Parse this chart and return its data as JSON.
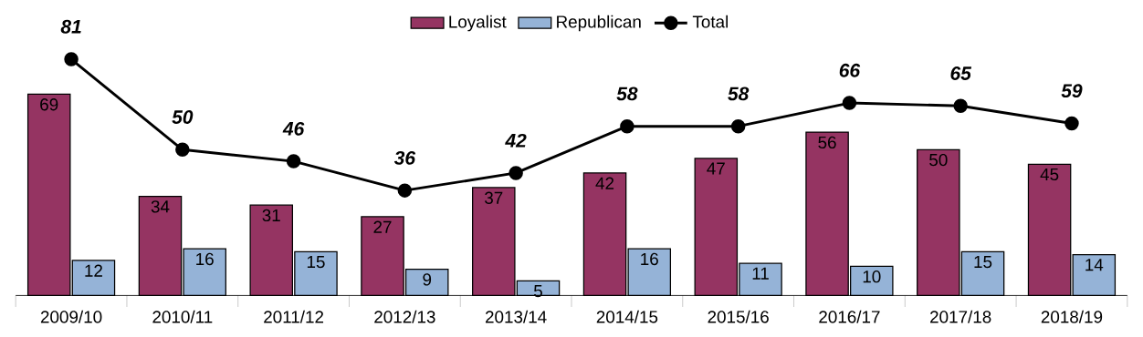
{
  "chart_data": {
    "type": "bar",
    "categories": [
      "2009/10",
      "2010/11",
      "2011/12",
      "2012/13",
      "2013/14",
      "2014/15",
      "2015/16",
      "2016/17",
      "2017/18",
      "2018/19"
    ],
    "series": [
      {
        "name": "Loyalist",
        "color": "#953462",
        "values": [
          69,
          34,
          31,
          27,
          37,
          42,
          47,
          56,
          50,
          45
        ]
      },
      {
        "name": "Republican",
        "color": "#95b3d7",
        "values": [
          12,
          16,
          15,
          9,
          5,
          16,
          11,
          10,
          15,
          14
        ]
      },
      {
        "name": "Total",
        "type": "line",
        "color": "#000000",
        "marker": "circle",
        "values": [
          81,
          50,
          46,
          36,
          42,
          58,
          58,
          66,
          65,
          59
        ]
      }
    ],
    "data_labels": true,
    "legend": "top"
  }
}
